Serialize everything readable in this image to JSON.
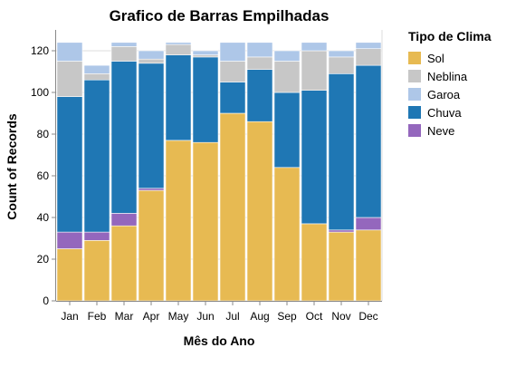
{
  "chart_data": {
    "type": "bar",
    "stacked": true,
    "title": "Grafico de Barras Empilhadas",
    "xlabel": "Mês do Ano",
    "ylabel": "Count of Records",
    "ylim": [
      0,
      130
    ],
    "yticks": [
      0,
      20,
      40,
      60,
      80,
      100,
      120
    ],
    "grid": true,
    "legend": {
      "title": "Tipo de Clima",
      "placement": "right"
    },
    "categories": [
      "Jan",
      "Feb",
      "Mar",
      "Apr",
      "May",
      "Jun",
      "Jul",
      "Aug",
      "Sep",
      "Oct",
      "Nov",
      "Dec"
    ],
    "series": [
      {
        "name": "Sol",
        "color": "#e7ba52",
        "values": [
          25,
          29,
          36,
          53,
          77,
          76,
          90,
          86,
          64,
          37,
          33,
          34
        ]
      },
      {
        "name": "Neve",
        "color": "#9467bd",
        "values": [
          8,
          4,
          6,
          1,
          0,
          0,
          0,
          0,
          0,
          0,
          1,
          6
        ]
      },
      {
        "name": "Chuva",
        "color": "#1f77b4",
        "values": [
          65,
          73,
          73,
          60,
          41,
          41,
          15,
          25,
          36,
          64,
          75,
          73
        ]
      },
      {
        "name": "Neblina",
        "color": "#c7c7c7",
        "values": [
          17,
          3,
          7,
          2,
          5,
          1,
          10,
          6,
          15,
          19,
          8,
          8
        ]
      },
      {
        "name": "Garoa",
        "color": "#aec7e8",
        "values": [
          9,
          4,
          2,
          4,
          1,
          2,
          9,
          7,
          5,
          4,
          3,
          3
        ]
      }
    ],
    "legend_order": [
      "Sol",
      "Neblina",
      "Garoa",
      "Chuva",
      "Neve"
    ]
  }
}
